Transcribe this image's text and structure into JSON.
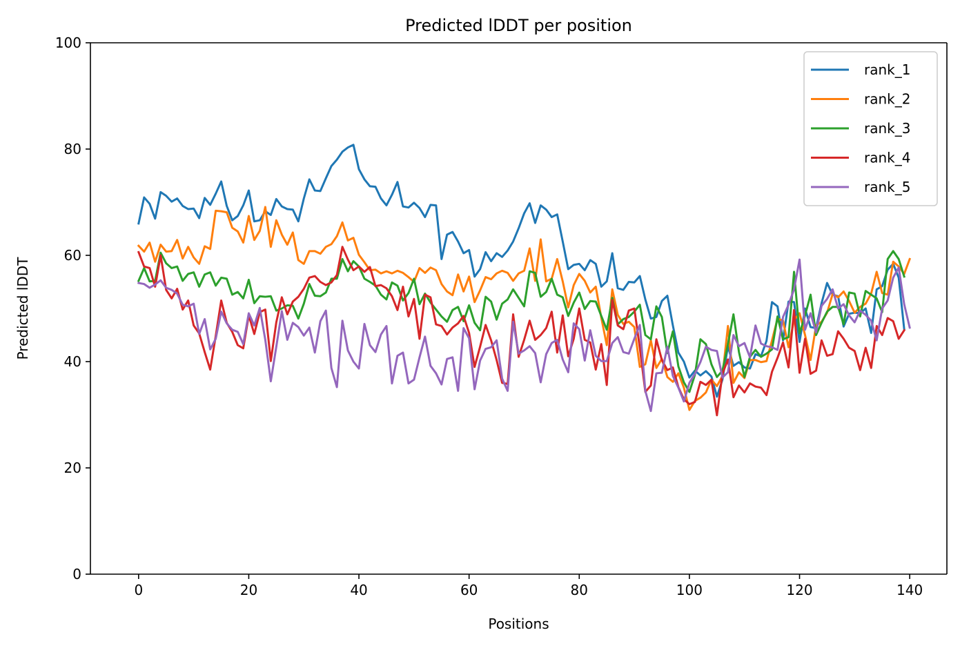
{
  "chart_data": {
    "type": "line",
    "title": "Predicted lDDT per position",
    "xlabel": "Positions",
    "ylabel": "Predicted lDDT",
    "xlim": [
      -8.75,
      146.75
    ],
    "ylim": [
      0,
      100
    ],
    "xticks": [
      0,
      20,
      40,
      60,
      80,
      100,
      120,
      140
    ],
    "xtick_labels": [
      "0",
      "20",
      "40",
      "60",
      "80",
      "100",
      "120",
      "140"
    ],
    "yticks": [
      0,
      20,
      40,
      60,
      80,
      100
    ],
    "ytick_labels": [
      "0",
      "20",
      "40",
      "60",
      "80",
      "100"
    ],
    "grid": false,
    "legend_position": "top-right",
    "x_start": 0,
    "x_step": 1,
    "series": [
      {
        "name": "rank_1",
        "color": "#1f77b4",
        "values": [
          66.0,
          70.9,
          69.7,
          66.9,
          71.9,
          71.2,
          70.1,
          70.7,
          69.3,
          68.7,
          68.8,
          67.0,
          70.8,
          69.5,
          71.6,
          73.9,
          69.3,
          66.6,
          67.4,
          69.4,
          72.2,
          66.4,
          66.6,
          68.3,
          67.6,
          70.6,
          69.2,
          68.7,
          68.6,
          66.4,
          70.7,
          74.3,
          72.2,
          72.1,
          74.5,
          76.8,
          78.0,
          79.5,
          80.3,
          80.8,
          76.2,
          74.3,
          73.0,
          72.9,
          70.7,
          69.4,
          71.4,
          73.8,
          69.2,
          69.0,
          69.9,
          68.9,
          67.2,
          69.5,
          69.4,
          59.3,
          63.9,
          64.4,
          62.6,
          60.4,
          61.0,
          56.0,
          57.4,
          60.6,
          58.9,
          60.4,
          59.7,
          60.9,
          62.6,
          65.1,
          67.9,
          69.8,
          66.1,
          69.4,
          68.6,
          67.2,
          67.7,
          62.6,
          57.4,
          58.2,
          58.4,
          57.2,
          59.1,
          58.4,
          54.1,
          55.1,
          60.4,
          53.8,
          53.5,
          55.0,
          54.9,
          56.1,
          51.7,
          48.1,
          48.4,
          51.4,
          52.4,
          46.8,
          41.7,
          40.0,
          37.0,
          38.3,
          37.4,
          38.2,
          37.2,
          33.4,
          36.6,
          42.9,
          39.2,
          39.9,
          38.9,
          38.7,
          41.4,
          41.0,
          43.9,
          51.2,
          50.4,
          44.0,
          51.3,
          51.2,
          43.7,
          50.0,
          46.5,
          46.3,
          51.0,
          54.8,
          52.6,
          52.3,
          46.6,
          49.0,
          49.2,
          49.1,
          50.0,
          45.4,
          53.6,
          54.2,
          57.3,
          58.4,
          55.8,
          46.1
        ]
      },
      {
        "name": "rank_2",
        "color": "#ff7f0e",
        "values": [
          61.8,
          60.7,
          62.4,
          58.8,
          62.0,
          60.7,
          60.8,
          62.9,
          59.4,
          61.6,
          59.6,
          58.4,
          61.7,
          61.2,
          68.4,
          68.3,
          68.1,
          65.2,
          64.5,
          62.4,
          67.4,
          62.9,
          64.6,
          69.1,
          61.6,
          66.6,
          63.9,
          62.0,
          64.3,
          59.1,
          58.4,
          60.8,
          60.8,
          60.3,
          61.6,
          62.1,
          63.6,
          66.2,
          62.8,
          63.3,
          60.1,
          58.7,
          57.2,
          57.3,
          56.6,
          57.0,
          56.6,
          57.1,
          56.7,
          55.9,
          55.0,
          57.6,
          56.7,
          57.7,
          57.2,
          54.6,
          53.2,
          52.5,
          56.4,
          53.2,
          56.0,
          51.2,
          53.4,
          55.9,
          55.5,
          56.6,
          57.1,
          56.7,
          55.2,
          56.6,
          57.1,
          61.3,
          55.2,
          63.0,
          55.1,
          55.6,
          59.3,
          55.1,
          50.2,
          54.4,
          56.5,
          55.2,
          53.0,
          54.1,
          48.3,
          43.1,
          53.6,
          48.8,
          47.1,
          47.5,
          46.5,
          39.0,
          39.5,
          44.0,
          38.8,
          40.5,
          37.1,
          36.2,
          37.8,
          35.1,
          30.9,
          32.6,
          33.2,
          34.2,
          36.6,
          35.4,
          37.3,
          46.7,
          36.0,
          38.0,
          36.9,
          40.3,
          40.3,
          39.9,
          40.1,
          44.0,
          48.1,
          47.7,
          42.7,
          47.8,
          49.1,
          45.0,
          40.3,
          46.8,
          47.5,
          49.2,
          52.7,
          52.1,
          53.2,
          51.4,
          49.2,
          50.3,
          50.9,
          52.8,
          56.9,
          52.9,
          52.6,
          58.8,
          57.9,
          56.5,
          59.3
        ]
      },
      {
        "name": "rank_3",
        "color": "#2ca02c",
        "values": [
          55.2,
          57.6,
          55.1,
          55.2,
          60.5,
          58.5,
          57.6,
          57.9,
          55.2,
          56.5,
          56.8,
          54.1,
          56.4,
          56.8,
          54.3,
          55.8,
          55.6,
          52.6,
          53.1,
          51.9,
          55.4,
          51.0,
          52.3,
          52.2,
          52.3,
          49.6,
          50.0,
          50.6,
          50.5,
          48.1,
          50.9,
          54.6,
          52.4,
          52.3,
          53.0,
          55.6,
          55.6,
          59.3,
          57.0,
          58.9,
          57.9,
          55.6,
          55.0,
          54.3,
          52.6,
          51.7,
          54.9,
          54.3,
          51.5,
          52.9,
          55.6,
          50.8,
          52.8,
          51.1,
          49.8,
          48.5,
          47.5,
          49.7,
          50.3,
          47.6,
          50.6,
          47.3,
          45.9,
          52.2,
          51.3,
          47.9,
          50.9,
          51.7,
          53.6,
          52.0,
          50.4,
          57.0,
          56.7,
          52.2,
          53.1,
          55.6,
          52.6,
          52.1,
          48.6,
          51.1,
          53.0,
          49.9,
          51.4,
          51.3,
          48.6,
          46.0,
          52.0,
          47.0,
          48.0,
          48.4,
          49.4,
          50.7,
          45.0,
          44.2,
          50.4,
          48.4,
          41.6,
          45.7,
          39.1,
          36.1,
          34.3,
          37.5,
          44.2,
          43.3,
          39.5,
          37.1,
          38.3,
          43.3,
          48.9,
          41.8,
          37.1,
          40.9,
          42.2,
          40.9,
          41.5,
          42.3,
          48.5,
          44.2,
          44.6,
          56.9,
          45.3,
          48.7,
          52.6,
          45.0,
          47.3,
          49.4,
          50.3,
          50.3,
          47.0,
          53.0,
          52.8,
          48.5,
          53.3,
          52.6,
          51.9,
          49.3,
          59.3,
          60.8,
          59.3,
          56.0
        ]
      },
      {
        "name": "rank_4",
        "color": "#d62728",
        "values": [
          60.6,
          57.9,
          57.6,
          54.1,
          60.0,
          53.5,
          51.9,
          53.7,
          49.8,
          51.5,
          46.8,
          45.3,
          41.8,
          38.5,
          44.8,
          51.5,
          47.3,
          45.6,
          43.1,
          42.5,
          48.7,
          45.2,
          49.3,
          49.8,
          40.1,
          47.4,
          52.1,
          48.9,
          51.3,
          52.2,
          53.7,
          55.8,
          56.1,
          55.0,
          54.4,
          54.9,
          56.3,
          61.6,
          59.2,
          57.2,
          57.9,
          56.9,
          57.8,
          54.2,
          54.4,
          53.8,
          52.3,
          49.7,
          54.1,
          48.5,
          51.8,
          44.3,
          52.6,
          52.1,
          47.0,
          46.7,
          45.1,
          46.4,
          47.2,
          48.6,
          45.4,
          39.0,
          42.8,
          46.9,
          44.0,
          40.3,
          36.0,
          35.8,
          48.9,
          40.9,
          44.1,
          47.7,
          44.1,
          45.0,
          46.3,
          49.4,
          41.7,
          48.7,
          41.0,
          44.3,
          50.0,
          44.1,
          43.6,
          38.5,
          43.3,
          35.6,
          51.6,
          46.8,
          46.1,
          49.6,
          50.0,
          42.6,
          34.3,
          35.5,
          44.2,
          40.3,
          38.4,
          38.9,
          35.2,
          32.9,
          32.0,
          32.4,
          36.2,
          35.6,
          36.6,
          29.9,
          37.7,
          40.4,
          33.3,
          35.5,
          34.2,
          35.9,
          35.3,
          35.1,
          33.7,
          38.1,
          40.7,
          43.6,
          38.9,
          49.7,
          37.9,
          44.3,
          37.7,
          38.3,
          44.0,
          41.1,
          41.4,
          45.7,
          44.3,
          42.6,
          42.0,
          38.4,
          42.6,
          38.8,
          46.7,
          45.0,
          48.2,
          47.6,
          44.3,
          45.9
        ]
      },
      {
        "name": "rank_5",
        "color": "#9467bd",
        "values": [
          54.8,
          54.6,
          53.9,
          54.5,
          55.3,
          53.9,
          53.5,
          52.8,
          50.7,
          50.4,
          50.9,
          45.2,
          48.0,
          42.3,
          44.3,
          49.4,
          47.2,
          46.0,
          45.6,
          43.3,
          49.1,
          46.8,
          50.1,
          44.1,
          36.3,
          42.8,
          49.5,
          44.1,
          47.3,
          46.5,
          44.9,
          46.4,
          41.7,
          47.6,
          49.6,
          38.8,
          35.2,
          47.7,
          42.1,
          40.0,
          38.7,
          47.1,
          43.1,
          41.8,
          45.1,
          46.7,
          35.9,
          41.1,
          41.7,
          35.9,
          36.6,
          40.8,
          44.7,
          39.2,
          37.8,
          35.7,
          40.5,
          40.8,
          34.5,
          46.3,
          44.4,
          34.8,
          40.2,
          42.4,
          42.7,
          44.0,
          36.8,
          34.5,
          47.5,
          41.5,
          42.1,
          42.9,
          41.6,
          36.1,
          41.4,
          43.5,
          44.1,
          40.4,
          38.0,
          47.2,
          46.1,
          40.2,
          45.9,
          41.1,
          40.1,
          40.1,
          43.5,
          44.6,
          41.8,
          41.5,
          44.3,
          46.9,
          34.5,
          30.7,
          37.8,
          37.9,
          42.8,
          37.3,
          35.1,
          32.5,
          36.0,
          37.7,
          39.9,
          42.8,
          42.2,
          42.0,
          37.0,
          38.0,
          45.0,
          42.9,
          43.5,
          40.8,
          46.8,
          43.4,
          42.9,
          42.7,
          42.2,
          48.4,
          50.7,
          53.6,
          59.2,
          46.0,
          49.1,
          45.5,
          50.5,
          51.8,
          53.6,
          50.0,
          50.8,
          48.7,
          47.4,
          49.6,
          48.8,
          47.7,
          44.0,
          50.0,
          51.5,
          55.8,
          57.7,
          50.8,
          46.4
        ]
      }
    ]
  }
}
